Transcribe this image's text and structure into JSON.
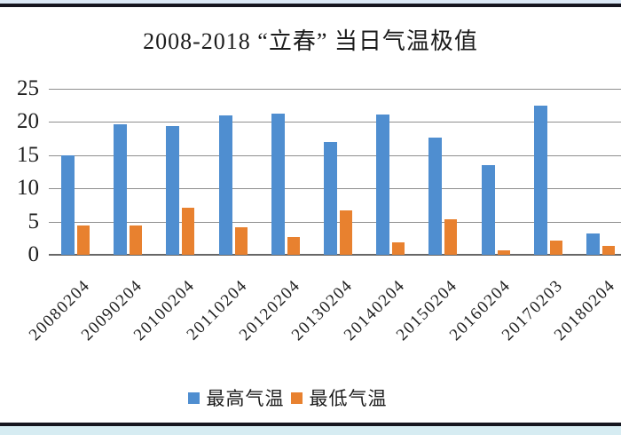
{
  "chart_data": {
    "type": "bar",
    "title": "2008-2018 “立春” 当日气温极值",
    "categories": [
      "20080204",
      "20090204",
      "20100204",
      "20110204",
      "20120204",
      "20130204",
      "20140204",
      "20150204",
      "20160204",
      "20170203",
      "20180204"
    ],
    "series": [
      {
        "name": "最高气温",
        "semantic": "max-temp",
        "color": "#4f8ed0",
        "values": [
          15,
          19.6,
          19.4,
          20.9,
          21.2,
          17,
          21.1,
          17.6,
          13.5,
          22.4,
          3.2
        ]
      },
      {
        "name": "最低气温",
        "semantic": "min-temp",
        "color": "#e8812f",
        "values": [
          4.4,
          4.4,
          7.1,
          4.1,
          2.7,
          6.7,
          1.9,
          5.4,
          0.7,
          2.1,
          1.4
        ]
      }
    ],
    "xlabel": "",
    "ylabel": "",
    "ylim": [
      0,
      25
    ],
    "yticks": [
      0,
      5,
      10,
      15,
      20,
      25
    ],
    "grid": true,
    "legend_position": "bottom"
  },
  "page": {
    "top_band_color": "#dce9f6",
    "bottom_band_color": "#d6ecf2",
    "rule_color": "#16161f",
    "gridline_color": "#8f8f8f"
  }
}
